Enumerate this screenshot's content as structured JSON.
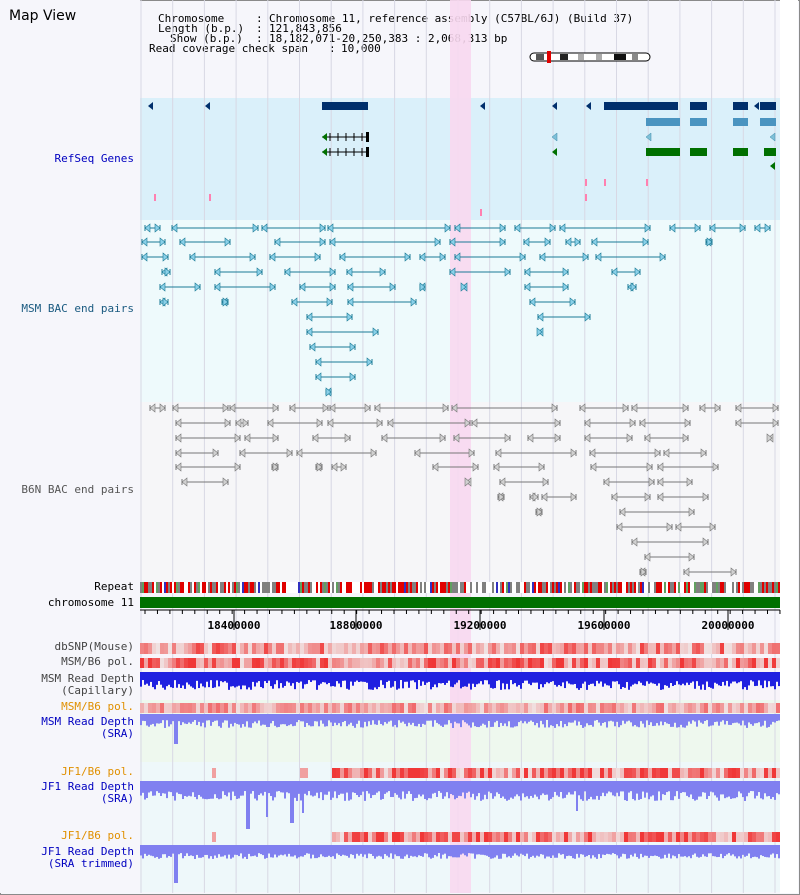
{
  "view_title": "Map View",
  "info": {
    "chromosome_key": "Chromosome",
    "chromosome_value": "Chromosome 11, reference assembly (C57BL/6J) (Build 37)",
    "length_key": "Length (b.p.)",
    "length_value": "121,843,856",
    "show_key": "Show (b.p.)",
    "show_value": "18,182,071-20,250,383 : 2,068,313 bp",
    "coverage_key": "Read coverage check span",
    "coverage_value": "10,000"
  },
  "tracks": {
    "refseq": "RefSeq Genes",
    "msm_bac": "MSM BAC end pairs",
    "b6n_bac": "B6N BAC end pairs",
    "repeat": "Repeat",
    "chromosome": "chromosome 11",
    "dbsnp": "dbSNP(Mouse)",
    "msm_b6_pol": "MSM/B6 pol.",
    "msm_depth_cap_1": "MSM Read Depth",
    "msm_depth_cap_2": "(Capillary)",
    "msm_b6_pol_2": "MSM/B6 pol.",
    "msm_depth_sra_1": "MSM Read Depth",
    "msm_depth_sra_2": "(SRA)",
    "jf1_b6_pol": "JF1/B6 pol.",
    "jf1_depth_sra_1": "JF1 Read Depth",
    "jf1_depth_sra_2": "(SRA)",
    "jf1_b6_pol_2": "JF1/B6 pol.",
    "jf1_depth_trim_1": "JF1 Read Depth",
    "jf1_depth_trim_2": "(SRA trimmed)"
  },
  "axis_ticks": [
    "18400000",
    "18800000",
    "19200000",
    "19600000",
    "20000000"
  ],
  "colors": {
    "refseq_bg": "#daf0fa",
    "bac_bg": "#eefafc",
    "highlight": "#f8d8f0",
    "refseq_dark": "#002f6c",
    "refseq_mid": "#4a94c0",
    "refseq_green": "#007000",
    "msm_bac_line": "#1a7a96",
    "b6n_bac_line": "#777777",
    "chromosome_green": "#007000",
    "depth_blue": "#2020e0",
    "depth_light": "#8080f0",
    "label_blue": "#0000c0",
    "label_orange": "#e09000"
  }
}
